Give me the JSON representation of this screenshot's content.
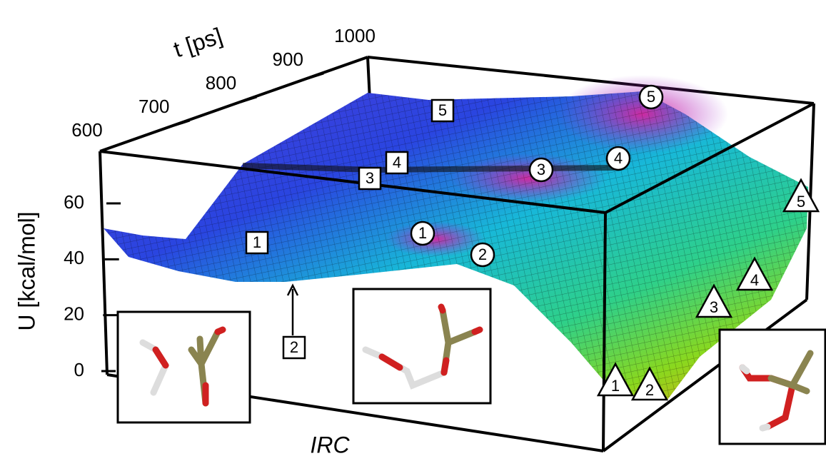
{
  "axes": {
    "z_label": "U [kcal/mol]",
    "z_ticks": [
      0,
      20,
      40,
      60
    ],
    "t_label": "t [ps]",
    "t_ticks": [
      600,
      700,
      800,
      900,
      1000
    ],
    "x_label": "IRC"
  },
  "markers": {
    "squares": [
      "1",
      "2",
      "3",
      "4",
      "5"
    ],
    "circles": [
      "1",
      "2",
      "3",
      "4",
      "5"
    ],
    "triangles": [
      "1",
      "2",
      "3",
      "4",
      "5"
    ]
  }
}
